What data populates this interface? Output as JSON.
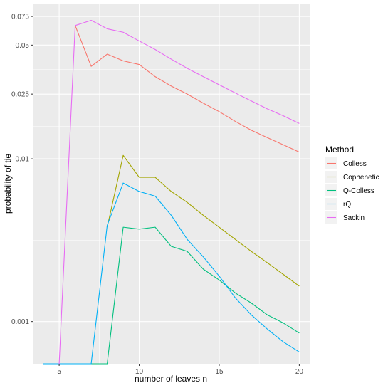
{
  "chart_data": {
    "type": "line",
    "xlabel": "number of leaves n",
    "ylabel": "probability of tie",
    "y_scale": "log",
    "xlim": [
      3.35,
      20.65
    ],
    "ylim": [
      0.00055,
      0.09
    ],
    "x_ticks": [
      5,
      10,
      15,
      20
    ],
    "x_tick_labels": [
      "5",
      "10",
      "15",
      "20"
    ],
    "y_ticks": [
      0.001,
      0.01,
      0.025,
      0.05,
      0.075
    ],
    "y_tick_labels": [
      "0.001",
      "0.01",
      "0.025",
      "0.05",
      "0.075"
    ],
    "grid": true,
    "background": "#ebebeb",
    "legend": {
      "title": "Method",
      "position": "right"
    },
    "x": [
      4,
      5,
      6,
      7,
      8,
      9,
      10,
      11,
      12,
      13,
      14,
      15,
      16,
      17,
      18,
      19,
      20
    ],
    "series": [
      {
        "name": "Colless",
        "color": "#F8766D",
        "values": [
          null,
          null,
          0.066,
          0.037,
          0.044,
          0.04,
          0.038,
          0.032,
          0.028,
          0.025,
          0.022,
          0.0195,
          0.017,
          0.015,
          0.0135,
          0.0122,
          0.011
        ]
      },
      {
        "name": "Cophenetic",
        "color": "#A3A500",
        "values": [
          null,
          null,
          null,
          null,
          0.0038,
          0.0105,
          0.0077,
          0.0077,
          0.0063,
          0.0054,
          0.0045,
          0.0038,
          0.0032,
          0.0027,
          0.0023,
          0.00195,
          0.00165
        ]
      },
      {
        "name": "Q-Colless",
        "color": "#00BF7D",
        "values": [
          0.00055,
          0.00055,
          0.00055,
          0.00055,
          0.00055,
          0.0038,
          0.0037,
          0.0038,
          0.0029,
          0.0027,
          0.0021,
          0.0018,
          0.0015,
          0.0013,
          0.0011,
          0.00098,
          0.00085
        ]
      },
      {
        "name": "rQI",
        "color": "#00B0F6",
        "values": [
          0.00055,
          0.00055,
          0.00055,
          0.00055,
          0.0039,
          0.0071,
          0.0063,
          0.0059,
          0.0045,
          0.0032,
          0.0025,
          0.0019,
          0.0014,
          0.0011,
          0.0009,
          0.00075,
          0.00065
        ]
      },
      {
        "name": "Sackin",
        "color": "#E76BF3",
        "values": [
          null,
          0.00055,
          0.066,
          0.071,
          0.063,
          0.06,
          0.053,
          0.047,
          0.041,
          0.036,
          0.032,
          0.0285,
          0.0254,
          0.0227,
          0.0203,
          0.0184,
          0.0165
        ]
      }
    ]
  }
}
